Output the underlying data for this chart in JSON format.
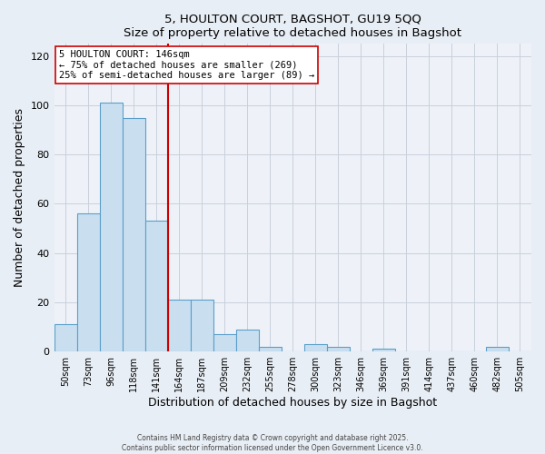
{
  "title": "5, HOULTON COURT, BAGSHOT, GU19 5QQ",
  "subtitle": "Size of property relative to detached houses in Bagshot",
  "xlabel": "Distribution of detached houses by size in Bagshot",
  "ylabel": "Number of detached properties",
  "bar_labels": [
    "50sqm",
    "73sqm",
    "96sqm",
    "118sqm",
    "141sqm",
    "164sqm",
    "187sqm",
    "209sqm",
    "232sqm",
    "255sqm",
    "278sqm",
    "300sqm",
    "323sqm",
    "346sqm",
    "369sqm",
    "391sqm",
    "414sqm",
    "437sqm",
    "460sqm",
    "482sqm",
    "505sqm"
  ],
  "bar_values": [
    11,
    56,
    101,
    95,
    53,
    21,
    21,
    7,
    9,
    2,
    0,
    3,
    2,
    0,
    1,
    0,
    0,
    0,
    0,
    2,
    0
  ],
  "bar_color": "#c9dff0",
  "bar_edge_color": "#5a9ec9",
  "ylim": [
    0,
    125
  ],
  "yticks": [
    0,
    20,
    40,
    60,
    80,
    100,
    120
  ],
  "property_line_x": 4.5,
  "property_line_color": "#cc0000",
  "annotation_title": "5 HOULTON COURT: 146sqm",
  "annotation_line1": "← 75% of detached houses are smaller (269)",
  "annotation_line2": "25% of semi-detached houses are larger (89) →",
  "annotation_box_color": "#ffffff",
  "annotation_box_edge_color": "#cc0000",
  "footer_line1": "Contains HM Land Registry data © Crown copyright and database right 2025.",
  "footer_line2": "Contains public sector information licensed under the Open Government Licence v3.0.",
  "background_color": "#e8eef5",
  "plot_background_color": "#eef2f8",
  "grid_color": "#c8d0dc"
}
